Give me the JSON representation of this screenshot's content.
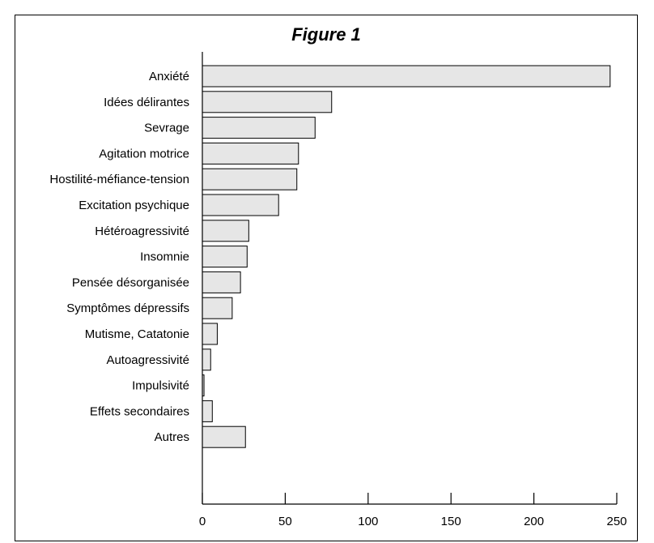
{
  "chart_data": {
    "type": "bar",
    "orientation": "horizontal",
    "title": "Figure 1",
    "xlabel": "",
    "ylabel": "",
    "xlim": [
      0,
      250
    ],
    "xticks": [
      0,
      50,
      100,
      150,
      200,
      250
    ],
    "grid": false,
    "categories": [
      "Anxiété",
      "Idées délirantes",
      "Sevrage",
      "Agitation motrice",
      "Hostilité-méfiance-tension",
      "Excitation psychique",
      "Hétéroagressivité",
      "Insomnie",
      "Pensée désorganisée",
      "Symptômes dépressifs",
      "Mutisme, Catatonie",
      "Autoagressivité",
      "Impulsivité",
      "Effets secondaires",
      "Autres"
    ],
    "values": [
      246,
      78,
      68,
      58,
      57,
      46,
      28,
      27,
      23,
      18,
      9,
      5,
      1,
      6,
      26
    ],
    "bar_color": "#e6e6e6"
  }
}
